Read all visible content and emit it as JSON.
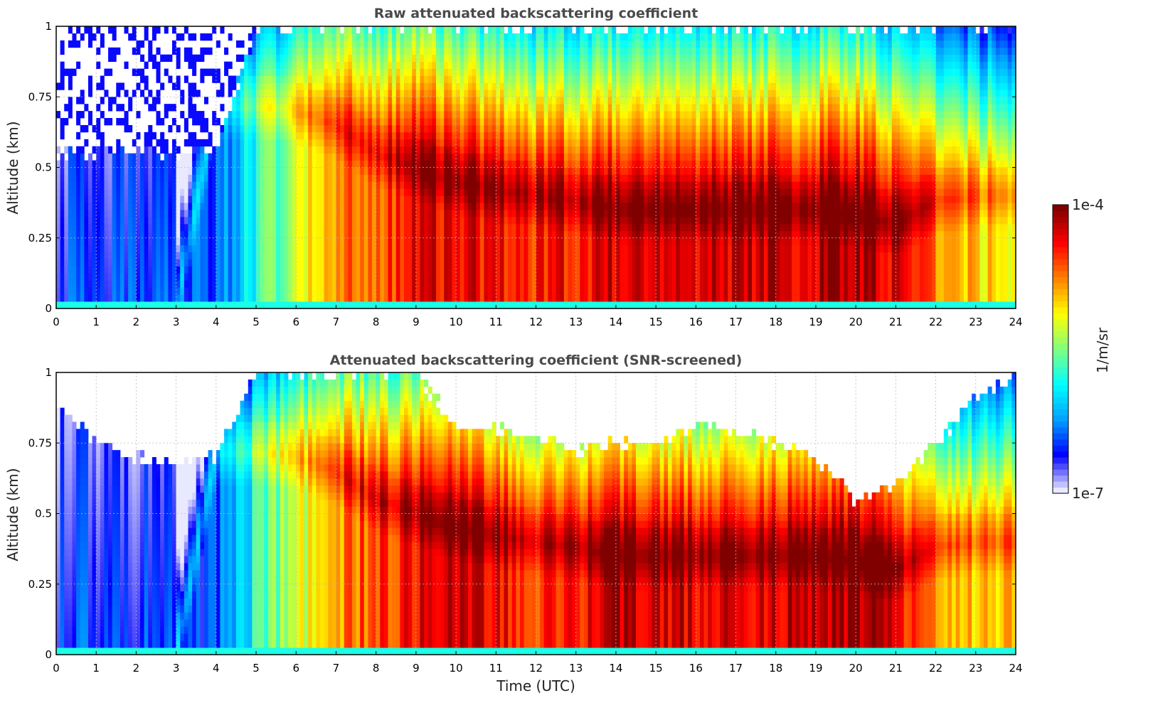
{
  "chart_data": [
    {
      "type": "heatmap",
      "title": "Raw attenuated backscattering coefficient",
      "ylabel": "Altitude (km)",
      "xlabel": "",
      "x_ticks": [
        "0",
        "1",
        "2",
        "3",
        "4",
        "5",
        "6",
        "7",
        "8",
        "9",
        "10",
        "11",
        "12",
        "13",
        "14",
        "15",
        "16",
        "17",
        "18",
        "19",
        "20",
        "21",
        "22",
        "23",
        "24"
      ],
      "y_ticks": [
        "0",
        "0.25",
        "0.5",
        "0.75",
        "1"
      ],
      "xlim": [
        0,
        24
      ],
      "ylim": [
        0,
        1
      ],
      "grid": true,
      "screened": false,
      "cloud_top_km": [
        0.55,
        0.55,
        0.55,
        0.55,
        0.55,
        1.0,
        1.0,
        1.0,
        1.0,
        1.0,
        1.0,
        1.0,
        1.0,
        1.0,
        1.0,
        1.0,
        1.0,
        1.0,
        1.0,
        1.0,
        1.0,
        1.0,
        1.0,
        1.0,
        1.0
      ],
      "layer_height_km": [
        0,
        0,
        0,
        0,
        0.72,
        0.72,
        0.7,
        0.65,
        0.55,
        0.5,
        0.45,
        0.42,
        0.4,
        0.38,
        0.35,
        0.35,
        0.35,
        0.35,
        0.35,
        0.35,
        0.33,
        0.3,
        0.38,
        0.4,
        0.4
      ],
      "intensity_log10": [
        -6.5,
        -6.5,
        -6.5,
        -6.5,
        -6.5,
        -5.8,
        -5.3,
        -4.8,
        -4.6,
        -4.4,
        -4.3,
        -4.4,
        -4.5,
        -4.4,
        -4.2,
        -4.25,
        -4.3,
        -4.3,
        -4.25,
        -4.2,
        -4.1,
        -4.3,
        -4.8,
        -5.0,
        -5.0
      ]
    },
    {
      "type": "heatmap",
      "title": "Attenuated backscattering coefficient (SNR-screened)",
      "ylabel": "Altitude (km)",
      "xlabel": "Time (UTC)",
      "x_ticks": [
        "0",
        "1",
        "2",
        "3",
        "4",
        "5",
        "6",
        "7",
        "8",
        "9",
        "10",
        "11",
        "12",
        "13",
        "14",
        "15",
        "16",
        "17",
        "18",
        "19",
        "20",
        "21",
        "22",
        "23",
        "24"
      ],
      "y_ticks": [
        "0",
        "0.25",
        "0.5",
        "0.75",
        "1"
      ],
      "xlim": [
        0,
        24
      ],
      "ylim": [
        0,
        1
      ],
      "grid": true,
      "screened": true,
      "cloud_top_km": [
        0.9,
        0.75,
        0.7,
        0.68,
        0.7,
        1.0,
        1.0,
        1.0,
        1.0,
        1.0,
        0.8,
        0.8,
        0.78,
        0.72,
        0.75,
        0.75,
        0.82,
        0.8,
        0.75,
        0.7,
        0.55,
        0.6,
        0.75,
        0.9,
        1.0
      ],
      "layer_height_km": [
        0,
        0,
        0,
        0,
        0.72,
        0.72,
        0.7,
        0.65,
        0.55,
        0.5,
        0.45,
        0.42,
        0.4,
        0.38,
        0.35,
        0.35,
        0.35,
        0.35,
        0.35,
        0.35,
        0.33,
        0.3,
        0.38,
        0.4,
        0.4
      ],
      "intensity_log10": [
        -6.5,
        -6.5,
        -6.5,
        -6.5,
        -6.5,
        -5.8,
        -5.3,
        -4.8,
        -4.6,
        -4.4,
        -4.3,
        -4.4,
        -4.5,
        -4.4,
        -4.2,
        -4.25,
        -4.3,
        -4.3,
        -4.25,
        -4.2,
        -4.1,
        -4.3,
        -4.8,
        -5.0,
        -5.0
      ]
    }
  ],
  "colorbar": {
    "max_label": "1e-4",
    "min_label": "1e-7",
    "unit_label": "1/m/sr",
    "colormap": "jet",
    "scale": "log",
    "colors": [
      "#e8e8ff",
      "#0000ff",
      "#00a0ff",
      "#00ffff",
      "#80ff80",
      "#ffff00",
      "#ff8000",
      "#ff0000",
      "#800000"
    ]
  }
}
